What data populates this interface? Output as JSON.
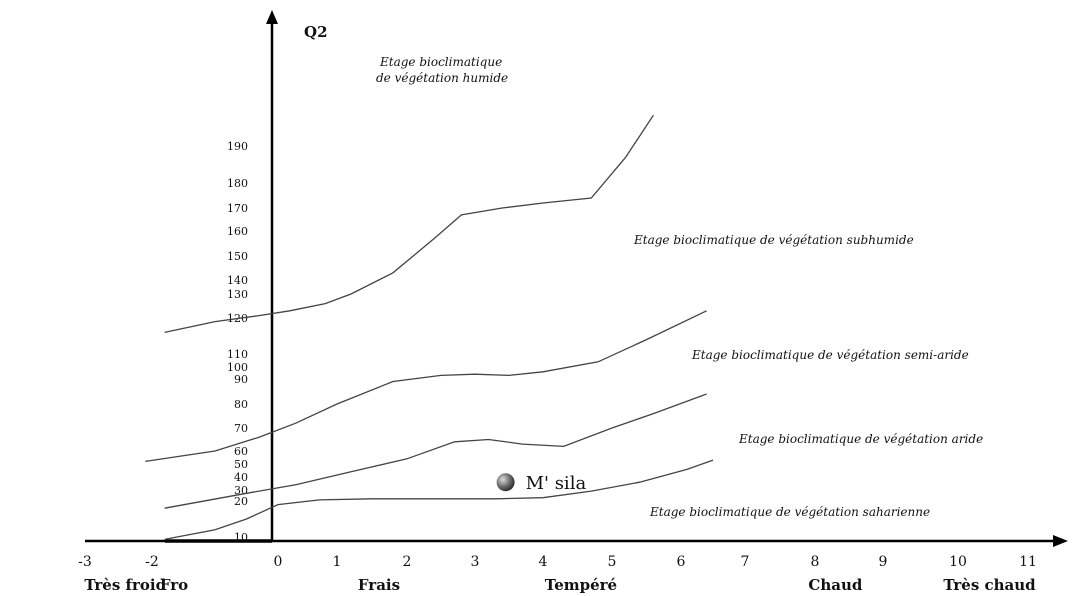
{
  "chart_data": {
    "type": "line",
    "title": "",
    "ylabel": "Q2",
    "y_ticks": [
      "10",
      "20",
      "30",
      "40",
      "50",
      "60",
      "70",
      "80",
      "90",
      "100",
      "110",
      "120",
      "130",
      "140",
      "150",
      "160",
      "170",
      "180",
      "190"
    ],
    "x_ticks": [
      "-3",
      "-2",
      "0",
      "1",
      "2",
      "3",
      "4",
      "5",
      "6",
      "7",
      "8",
      "9",
      "10",
      "11"
    ],
    "zones": [
      "Très froid",
      "Fro",
      "Frais",
      "Tempéré",
      "Chaud",
      "Très chaud"
    ],
    "xlim": [
      -3,
      11
    ],
    "series": [
      {
        "x": [
          -1.8,
          -1.0,
          -0.3,
          0.2,
          0.8,
          1.2,
          1.8,
          2.4,
          2.8,
          3.4,
          4.0,
          4.7,
          5.2,
          5.6
        ],
        "y": [
          116,
          119,
          121,
          123,
          126,
          130,
          143,
          157,
          167,
          170,
          172,
          174,
          187,
          201
        ]
      },
      {
        "x": [
          -2.1,
          -1.0,
          -0.3,
          0.3,
          1.0,
          1.8,
          2.5,
          3.0,
          3.5,
          4.0,
          4.8,
          5.5,
          6.4
        ],
        "y": [
          52,
          60,
          66,
          72,
          80,
          89,
          93,
          94,
          93,
          96,
          104,
          114,
          123
        ]
      },
      {
        "x": [
          -1.8,
          -0.5,
          0.3,
          1.2,
          2.0,
          2.7,
          3.2,
          3.7,
          4.3,
          5.0,
          5.6,
          6.4
        ],
        "y": [
          18,
          27,
          34,
          44,
          54,
          64,
          65,
          63,
          62,
          70,
          76,
          84
        ]
      },
      {
        "x": [
          -1.8,
          -1.0,
          -0.5,
          0,
          0.7,
          1.5,
          2.5,
          3.3,
          4.0,
          4.7,
          5.4,
          6.1,
          6.5
        ],
        "y": [
          7,
          12,
          15,
          19,
          21,
          22,
          22,
          22,
          23,
          29,
          36,
          46,
          53
        ]
      }
    ],
    "stage_labels": [
      "Etage bioclimatique",
      "de végétation humide",
      "Etage bioclimatique de végétation  subhumide",
      "Etage bioclimatique de végétation semi-aride",
      "Etage bioclimatique de végétation aride",
      "Etage bioclimatique de végétation saharienne"
    ],
    "points": [
      {
        "name": "M' sila",
        "x": 3.45,
        "y": 36,
        "color": "#666666"
      }
    ],
    "grid": false,
    "legend": "none"
  }
}
